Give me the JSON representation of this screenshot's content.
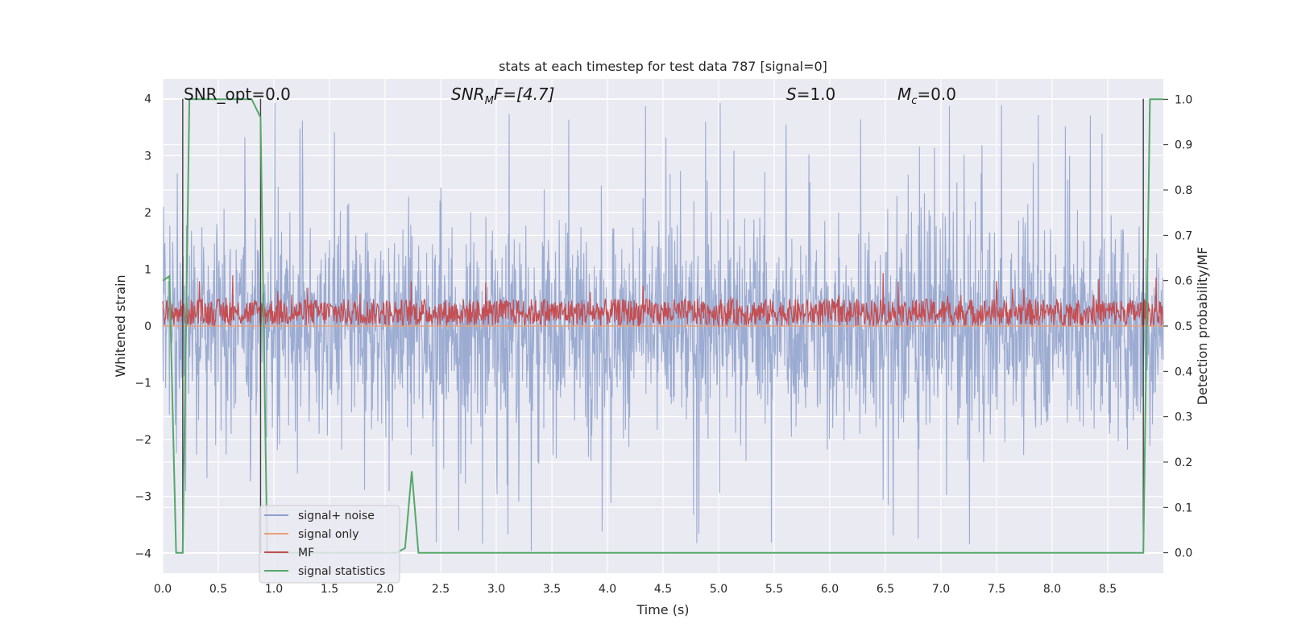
{
  "chart_data": {
    "type": "line",
    "title": "stats at each timestep for test data 787 [signal=0]",
    "xlabel": "Time (s)",
    "ylabel": "Whitened strain",
    "ylabel_right": "Detection probability/MF",
    "xlim": [
      0.0,
      9.0
    ],
    "ylim": [
      -4.35,
      4.35
    ],
    "ylim_right": [
      -0.045,
      1.045
    ],
    "x_ticks": [
      0.0,
      0.5,
      1.0,
      1.5,
      2.0,
      2.5,
      3.0,
      3.5,
      4.0,
      4.5,
      5.0,
      5.5,
      6.0,
      6.5,
      7.0,
      7.5,
      8.0,
      8.5
    ],
    "x_tick_labels": [
      "0.0",
      "0.5",
      "1.0",
      "1.5",
      "2.0",
      "2.5",
      "3.0",
      "3.5",
      "4.0",
      "4.5",
      "5.0",
      "5.5",
      "6.0",
      "6.5",
      "7.0",
      "7.5",
      "8.0",
      "8.5"
    ],
    "y_ticks": [
      -4,
      -3,
      -2,
      -1,
      0,
      1,
      2,
      3,
      4
    ],
    "y_tick_labels": [
      "−4",
      "−3",
      "−2",
      "−1",
      "0",
      "1",
      "2",
      "3",
      "4"
    ],
    "y_ticks_right": [
      0.0,
      0.1,
      0.2,
      0.3,
      0.4,
      0.5,
      0.6,
      0.7,
      0.8,
      0.9,
      1.0
    ],
    "y_tick_labels_right": [
      "0.0",
      "0.1",
      "0.2",
      "0.3",
      "0.4",
      "0.5",
      "0.6",
      "0.7",
      "0.8",
      "0.9",
      "1.0"
    ],
    "grid": true,
    "legend_position": "lower-left",
    "annotations": {
      "snr_opt": "SNR_opt=0.0",
      "snr_mf_base": "SNR",
      "snr_mf_sub": "M",
      "snr_mf_rest": "F=[4.7]",
      "s_base": "S",
      "s_rest": "=1.0",
      "mc_base": "M",
      "mc_sub": "c",
      "mc_rest": "=0.0"
    },
    "series": [
      {
        "name": "signal+ noise",
        "color": "#8da0cb",
        "axis": "left",
        "style": "noise",
        "x_range": [
          0.0,
          9.0
        ],
        "center": 0.0,
        "typical_amplitude": 1.6,
        "max_amplitude": 4.0
      },
      {
        "name": "signal only",
        "color": "#e8a07a",
        "axis": "left",
        "x": [
          0.0,
          9.0
        ],
        "y": [
          0.0,
          0.0
        ]
      },
      {
        "name": "MF",
        "color": "#c44e52",
        "axis": "right",
        "style": "noise",
        "x_range": [
          0.0,
          9.0
        ],
        "baseline": 0.5,
        "typical_top": 0.56,
        "max_value": 0.62
      },
      {
        "name": "signal statistics",
        "color": "#55a868",
        "axis": "right",
        "x": [
          0.0,
          0.06,
          0.12,
          0.18,
          0.24,
          0.3,
          0.8,
          0.88,
          0.94,
          1.0,
          2.1,
          2.18,
          2.24,
          2.3,
          7.4,
          7.5,
          8.74,
          8.82,
          8.88,
          9.0
        ],
        "y": [
          0.6,
          0.61,
          0.0,
          0.0,
          1.0,
          1.0,
          1.0,
          0.96,
          0.0,
          0.0,
          0.0,
          0.01,
          0.18,
          0.0,
          0.0,
          0.0,
          0.0,
          0.0,
          1.0,
          1.0
        ]
      }
    ],
    "vertical_lines": [
      {
        "x": 0.18,
        "color": "#404040"
      },
      {
        "x": 0.88,
        "color": "#404040"
      },
      {
        "x": 8.82,
        "color": "#404040"
      }
    ]
  }
}
